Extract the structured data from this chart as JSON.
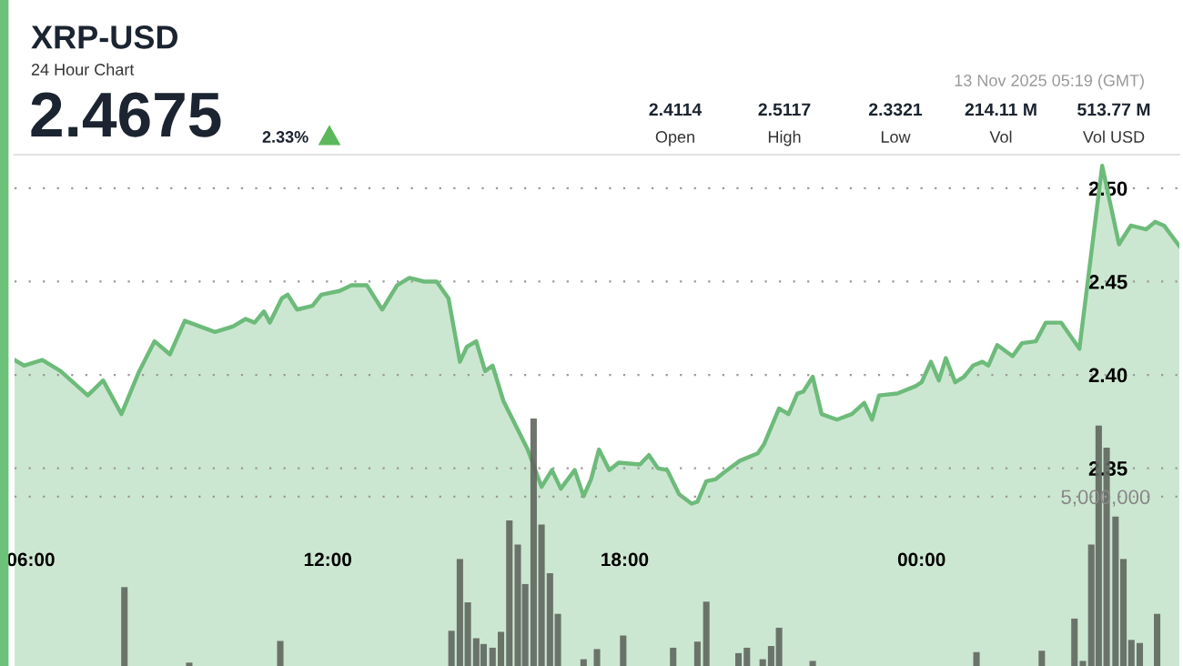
{
  "chart_data": {
    "type": "area",
    "title": "XRP-USD",
    "subtitle": "24 Hour Chart",
    "annotations": [
      "2.4675",
      "2.33%",
      "2.4114",
      "Open",
      "2.5117",
      "High",
      "2.3321",
      "Low",
      "214.11 M",
      "Vol",
      "513.77 M",
      "Vol USD",
      "13 Nov 2025 05:19 (GMT)"
    ],
    "xlim": [
      5.67,
      29.21
    ],
    "xticks": [
      {
        "value": 6,
        "label": "06:00"
      },
      {
        "value": 12,
        "label": "12:00"
      },
      {
        "value": 18,
        "label": "18:00"
      },
      {
        "value": 24,
        "label": "00:00"
      }
    ],
    "ylim": [
      2.244,
      2.518
    ],
    "yticks": [
      2.35,
      {
        "value": 2.4,
        "label": "2.40"
      },
      2.45,
      {
        "value": 2.5,
        "label": "2.50"
      }
    ],
    "y2lim": [
      0,
      15100000
    ],
    "y2ticks": [
      {
        "value": 5000000,
        "label": "5,000,000"
      }
    ],
    "grid": "y",
    "legend": false,
    "marker": "none",
    "line_style": "solid",
    "series": [
      {
        "color": "#6dbb7a",
        "x": [
          5.67,
          5.86,
          6.23,
          6.6,
          7.15,
          7.46,
          7.83,
          8.19,
          8.5,
          8.81,
          9.11,
          9.72,
          10.09,
          10.34,
          10.52,
          10.71,
          10.83,
          11.07,
          11.19,
          11.38,
          11.69,
          11.87,
          12.24,
          12.48,
          12.79,
          13.1,
          13.4,
          13.65,
          13.95,
          14.2,
          14.44,
          14.67,
          14.81,
          15.0,
          15.18,
          15.33,
          15.55,
          16.04,
          16.32,
          16.53,
          16.71,
          16.99,
          17.17,
          17.32,
          17.48,
          17.69,
          17.88,
          18.31,
          18.49,
          18.67,
          18.86,
          19.1,
          19.35,
          19.47,
          19.65,
          19.83,
          20.02,
          20.33,
          20.69,
          20.82,
          21.12,
          21.31,
          21.49,
          21.61,
          21.8,
          21.98,
          22.29,
          22.59,
          22.84,
          23.0,
          23.14,
          23.51,
          23.88,
          24.0,
          24.19,
          24.35,
          24.49,
          24.68,
          24.86,
          25.04,
          25.23,
          25.35,
          25.53,
          25.84,
          26.03,
          26.31,
          26.51,
          26.82,
          27.19,
          27.65,
          27.99,
          28.23,
          28.54,
          28.72,
          28.9,
          29.21
        ],
        "values": [
          2.408,
          2.405,
          2.408,
          2.402,
          2.389,
          2.397,
          2.379,
          2.402,
          2.418,
          2.411,
          2.429,
          2.423,
          2.426,
          2.43,
          2.428,
          2.434,
          2.428,
          2.441,
          2.443,
          2.435,
          2.437,
          2.443,
          2.445,
          2.448,
          2.448,
          2.435,
          2.448,
          2.452,
          2.45,
          2.45,
          2.441,
          2.407,
          2.415,
          2.418,
          2.402,
          2.405,
          2.386,
          2.36,
          2.34,
          2.349,
          2.339,
          2.349,
          2.335,
          2.344,
          2.36,
          2.349,
          2.353,
          2.352,
          2.357,
          2.35,
          2.349,
          2.336,
          2.331,
          2.332,
          2.343,
          2.344,
          2.348,
          2.354,
          2.358,
          2.363,
          2.382,
          2.379,
          2.39,
          2.391,
          2.399,
          2.379,
          2.376,
          2.379,
          2.385,
          2.376,
          2.389,
          2.39,
          2.394,
          2.396,
          2.407,
          2.397,
          2.409,
          2.396,
          2.399,
          2.405,
          2.407,
          2.405,
          2.416,
          2.41,
          2.417,
          2.418,
          2.428,
          2.428,
          2.414,
          2.512,
          2.47,
          2.48,
          2.478,
          2.482,
          2.48,
          2.469
        ]
      },
      {
        "type": "bar",
        "axis": "y2",
        "color": "#5f665d",
        "x": [
          7.89,
          9.2,
          11.04,
          14.5,
          14.67,
          14.83,
          15.0,
          15.15,
          15.33,
          15.5,
          15.67,
          15.84,
          15.99,
          16.16,
          16.32,
          16.49,
          16.65,
          17.17,
          17.44,
          17.97,
          18.98,
          19.47,
          19.65,
          20.3,
          20.47,
          20.79,
          20.96,
          21.12,
          21.8,
          25.11,
          26.43,
          27.09,
          27.26,
          27.43,
          27.58,
          27.74,
          27.92,
          28.08,
          28.24,
          28.41,
          28.76
        ],
        "values": [
          2330000,
          100000,
          740000,
          1040000,
          3160000,
          1880000,
          820000,
          650000,
          540000,
          1010000,
          4300000,
          3590000,
          2420000,
          7310000,
          4180000,
          2740000,
          1540000,
          200000,
          500000,
          900000,
          540000,
          720000,
          1900000,
          380000,
          540000,
          200000,
          590000,
          1130000,
          150000,
          410000,
          450000,
          1400000,
          150000,
          3590000,
          7100000,
          6450000,
          4410000,
          3160000,
          770000,
          680000,
          1540000
        ]
      }
    ]
  }
}
